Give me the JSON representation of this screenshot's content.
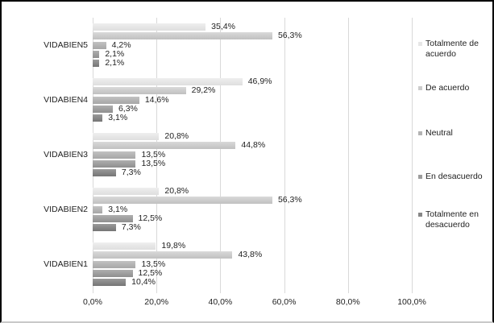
{
  "chart_data": {
    "type": "bar",
    "orientation": "horizontal",
    "title": "",
    "xlabel": "",
    "ylabel": "",
    "categories": [
      "VIDABIEN5",
      "VIDABIEN4",
      "VIDABIEN3",
      "VIDABIEN2",
      "VIDABIEN1"
    ],
    "category_order": "top-to-bottom",
    "series": [
      {
        "name": "Totalmente de acuerdo",
        "color": "#e6e6e6",
        "gradient": [
          "#efefef",
          "#dedede"
        ],
        "values": [
          35.4,
          46.9,
          20.8,
          20.8,
          19.8
        ],
        "labels": [
          "35,4%",
          "46,9%",
          "20,8%",
          "20,8%",
          "19,8%"
        ]
      },
      {
        "name": "De acuerdo",
        "color": "#cccccc",
        "gradient": [
          "#d9d9d9",
          "#c0c0c0"
        ],
        "values": [
          56.3,
          29.2,
          44.8,
          56.3,
          43.8
        ],
        "labels": [
          "56,3%",
          "29,2%",
          "44,8%",
          "56,3%",
          "43,8%"
        ]
      },
      {
        "name": "Neutral",
        "color": "#b3b3b3",
        "gradient": [
          "#c2c2c2",
          "#a6a6a6"
        ],
        "values": [
          4.2,
          14.6,
          13.5,
          3.1,
          13.5
        ],
        "labels": [
          "4,2%",
          "14,6%",
          "13,5%",
          "3,1%",
          "13,5%"
        ]
      },
      {
        "name": "En desacuerdo",
        "color": "#9d9d9d",
        "gradient": [
          "#aeaeae",
          "#8f8f8f"
        ],
        "values": [
          2.1,
          6.3,
          13.5,
          12.5,
          12.5
        ],
        "labels": [
          "2,1%",
          "6,3%",
          "13,5%",
          "12,5%",
          "12,5%"
        ]
      },
      {
        "name": "Totalmente en desacuerdo",
        "color": "#878787",
        "gradient": [
          "#9b9b9b",
          "#757575"
        ],
        "values": [
          2.1,
          3.1,
          7.3,
          7.3,
          10.4
        ],
        "labels": [
          "2,1%",
          "3,1%",
          "7,3%",
          "7,3%",
          "10,4%"
        ]
      }
    ],
    "x_ticks": {
      "values": [
        0,
        20,
        40,
        60,
        80,
        100
      ],
      "labels": [
        "0,0%",
        "20,0%",
        "40,0%",
        "60,0%",
        "80,0%",
        "100,0%"
      ]
    },
    "xlim": [
      0,
      100
    ],
    "grid": "vertical",
    "gridline_color": "#d9d9d9",
    "legend_position": "right",
    "text_color": "#1f1f1f",
    "background_color": "#ffffff",
    "value_label_position": "outside-end",
    "decimal_separator": "comma"
  }
}
